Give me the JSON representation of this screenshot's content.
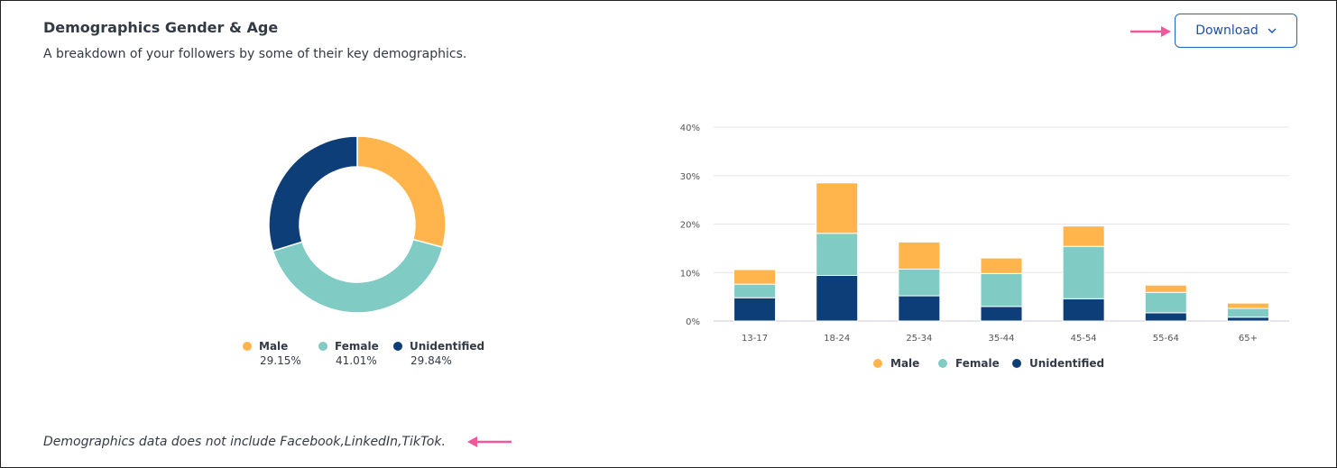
{
  "header": {
    "title": "Demographics Gender & Age",
    "subtitle": "A breakdown of your followers by some of their key demographics.",
    "download_label": "Download"
  },
  "footnote": "Demographics data does not include Facebook,LinkedIn,TikTok.",
  "colors": {
    "Male": "#FFB54C",
    "Female": "#80CBC4",
    "Unidentified": "#0E3E77",
    "annotation_arrow": "#F0589A"
  },
  "chart_data": [
    {
      "type": "pie",
      "variant": "donut",
      "labels": [
        "Male",
        "Female",
        "Unidentified"
      ],
      "values": [
        29.15,
        41.01,
        29.84
      ],
      "value_labels": [
        "29.15%",
        "41.01%",
        "29.84%"
      ],
      "legend": "bottom"
    },
    {
      "type": "bar",
      "stacked": true,
      "categories": [
        "13-17",
        "18-24",
        "25-34",
        "35-44",
        "45-54",
        "55-64",
        "65+"
      ],
      "series": [
        {
          "name": "Unidentified",
          "values": [
            4.8,
            9.4,
            5.2,
            3.0,
            4.6,
            1.7,
            0.8
          ]
        },
        {
          "name": "Female",
          "values": [
            2.8,
            8.7,
            5.5,
            6.8,
            10.8,
            4.2,
            1.8
          ]
        },
        {
          "name": "Male",
          "values": [
            3.0,
            10.4,
            5.6,
            3.2,
            4.2,
            1.5,
            1.1
          ]
        }
      ],
      "ylim": [
        0,
        40
      ],
      "yticks": [
        "0%",
        "10%",
        "20%",
        "30%",
        "40%"
      ],
      "grid": true,
      "legend": "bottom",
      "legend_order": [
        "Male",
        "Female",
        "Unidentified"
      ]
    }
  ]
}
